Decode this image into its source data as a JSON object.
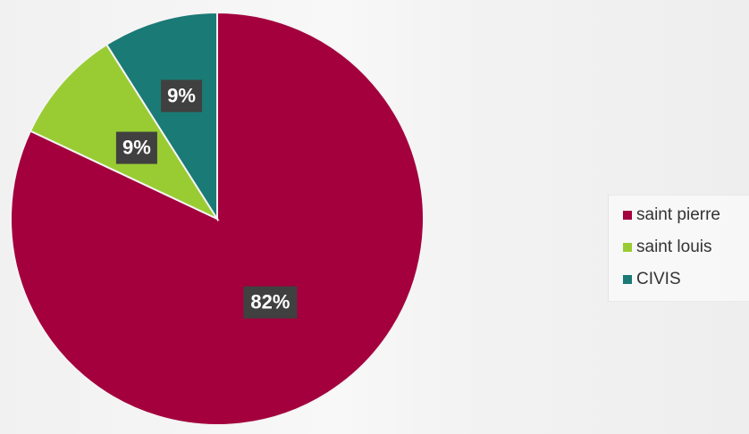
{
  "chart_data": {
    "type": "pie",
    "title": "",
    "slices": [
      {
        "name": "saint pierre",
        "value": 82,
        "label": "82%",
        "color": "#a3003d"
      },
      {
        "name": "saint louis",
        "value": 9,
        "label": "9%",
        "color": "#99cc33"
      },
      {
        "name": "CIVIS",
        "value": 9,
        "label": "9%",
        "color": "#1a7a75"
      }
    ],
    "legend_position": "right",
    "data_label_style": "dark-box"
  }
}
